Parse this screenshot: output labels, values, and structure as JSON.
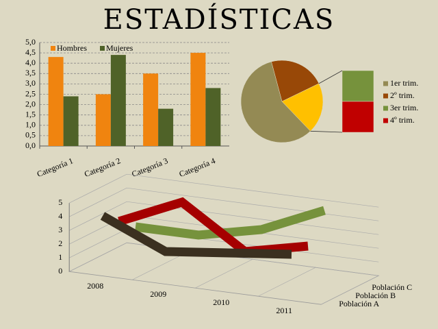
{
  "title": "ESTADÍSTICAS",
  "chart_data": [
    {
      "type": "bar",
      "categories": [
        "Categoría 1",
        "Categoría 2",
        "Categoría 3",
        "Categoría 4"
      ],
      "series": [
        {
          "name": "Hombres",
          "color": "#f0840f",
          "values": [
            4.3,
            2.5,
            3.5,
            4.5
          ]
        },
        {
          "name": "Mujeres",
          "color": "#4f6228",
          "values": [
            2.4,
            4.4,
            1.8,
            2.8
          ]
        }
      ],
      "ylim": [
        0,
        5
      ],
      "yticks": [
        {
          "value": 0,
          "label": "0,0"
        },
        {
          "value": 0.5,
          "label": "0,5"
        },
        {
          "value": 1,
          "label": "1,0"
        },
        {
          "value": 1.5,
          "label": "1,5"
        },
        {
          "value": 2,
          "label": "2,0"
        },
        {
          "value": 2.5,
          "label": "2,5"
        },
        {
          "value": 3,
          "label": "3,0"
        },
        {
          "value": 3.5,
          "label": "3,5"
        },
        {
          "value": 4,
          "label": "4,0"
        },
        {
          "value": 4.5,
          "label": "4,5"
        },
        {
          "value": 5,
          "label": "5,0"
        }
      ],
      "grid": true,
      "legend": "top-left"
    },
    {
      "type": "pie-of-bar",
      "categories": [
        "1er trim.",
        "2º trim.",
        "3er trim.",
        "4º trim."
      ],
      "values": [
        58,
        22,
        10,
        10
      ],
      "colors": [
        "#948a54",
        "#984807",
        "#76923c",
        "#c00000"
      ],
      "other_color": "#ffc000",
      "secondary_count": 2,
      "legend": "right"
    },
    {
      "type": "ribbon-3d",
      "categories": [
        "2008",
        "2009",
        "2010",
        "2011"
      ],
      "series": [
        {
          "name": "Población A",
          "color": "#3b3020",
          "values": [
            4,
            2,
            2.5,
            3
          ]
        },
        {
          "name": "Población B",
          "color": "#a50000",
          "values": [
            3,
            5,
            2,
            3
          ]
        },
        {
          "name": "Población C",
          "color": "#76923c",
          "values": [
            2,
            2,
            3,
            5
          ]
        }
      ],
      "ylim": [
        0,
        5
      ],
      "yticks": [
        0,
        1,
        2,
        3,
        4,
        5
      ]
    }
  ]
}
